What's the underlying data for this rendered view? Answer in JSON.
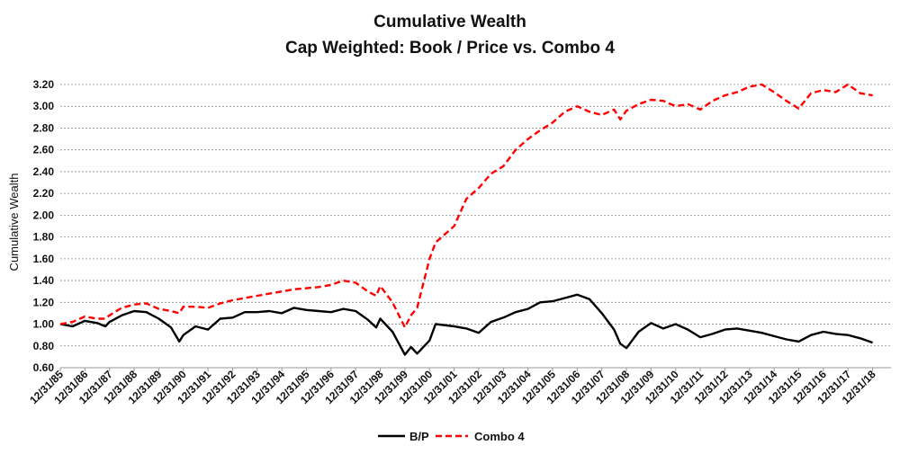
{
  "chart_data": {
    "type": "line",
    "title": "Cumulative Wealth",
    "subtitle": "Cap Weighted: Book / Price vs. Combo 4",
    "ylabel": "Cumulative Wealth",
    "xlabel": "",
    "ylim": [
      0.6,
      3.2
    ],
    "yticks": [
      "0.60",
      "0.80",
      "1.00",
      "1.20",
      "1.40",
      "1.60",
      "1.80",
      "2.00",
      "2.20",
      "2.40",
      "2.60",
      "2.80",
      "3.00",
      "3.20"
    ],
    "x_ticks": [
      "12/31/85",
      "12/31/86",
      "12/31/87",
      "12/31/88",
      "12/31/89",
      "12/31/90",
      "12/31/91",
      "12/31/92",
      "12/31/93",
      "12/31/94",
      "12/31/95",
      "12/31/96",
      "12/31/97",
      "12/31/98",
      "12/31/99",
      "12/31/00",
      "12/31/01",
      "12/31/02",
      "12/31/03",
      "12/31/04",
      "12/31/05",
      "12/31/06",
      "12/31/07",
      "12/31/08",
      "12/31/09",
      "12/31/10",
      "12/31/11",
      "12/31/12",
      "12/31/13",
      "12/31/14",
      "12/31/15",
      "12/31/16",
      "12/31/17",
      "12/31/18"
    ],
    "grid": "horizontal",
    "legend_position": "bottom",
    "series": [
      {
        "name": "B/P",
        "color": "#000000",
        "dash": "solid",
        "points": [
          [
            "12/31/85",
            1.0
          ],
          [
            "06/30/86",
            0.98
          ],
          [
            "12/31/86",
            1.03
          ],
          [
            "06/30/87",
            1.01
          ],
          [
            "10/31/87",
            0.98
          ],
          [
            "12/31/87",
            1.02
          ],
          [
            "06/30/88",
            1.08
          ],
          [
            "12/31/88",
            1.12
          ],
          [
            "06/30/89",
            1.11
          ],
          [
            "12/31/89",
            1.05
          ],
          [
            "06/30/90",
            0.97
          ],
          [
            "10/31/90",
            0.84
          ],
          [
            "12/31/90",
            0.9
          ],
          [
            "06/30/91",
            0.98
          ],
          [
            "12/31/91",
            0.95
          ],
          [
            "06/30/92",
            1.05
          ],
          [
            "12/31/92",
            1.06
          ],
          [
            "06/30/93",
            1.11
          ],
          [
            "12/31/93",
            1.11
          ],
          [
            "06/30/94",
            1.12
          ],
          [
            "12/31/94",
            1.1
          ],
          [
            "06/30/95",
            1.15
          ],
          [
            "12/31/95",
            1.13
          ],
          [
            "06/30/96",
            1.12
          ],
          [
            "12/31/96",
            1.11
          ],
          [
            "06/30/97",
            1.14
          ],
          [
            "12/31/97",
            1.12
          ],
          [
            "06/30/98",
            1.04
          ],
          [
            "10/31/98",
            0.97
          ],
          [
            "12/31/98",
            1.05
          ],
          [
            "06/30/99",
            0.93
          ],
          [
            "12/31/99",
            0.72
          ],
          [
            "03/31/00",
            0.79
          ],
          [
            "06/30/00",
            0.73
          ],
          [
            "12/31/00",
            0.85
          ],
          [
            "03/31/01",
            1.0
          ],
          [
            "12/31/01",
            0.98
          ],
          [
            "06/30/02",
            0.96
          ],
          [
            "12/31/02",
            0.92
          ],
          [
            "06/30/03",
            1.02
          ],
          [
            "12/31/03",
            1.06
          ],
          [
            "06/30/04",
            1.11
          ],
          [
            "12/31/04",
            1.14
          ],
          [
            "06/30/05",
            1.2
          ],
          [
            "12/31/05",
            1.21
          ],
          [
            "06/30/06",
            1.24
          ],
          [
            "12/31/06",
            1.27
          ],
          [
            "06/30/07",
            1.23
          ],
          [
            "12/31/07",
            1.1
          ],
          [
            "06/30/08",
            0.95
          ],
          [
            "09/30/08",
            0.82
          ],
          [
            "12/31/08",
            0.78
          ],
          [
            "06/30/09",
            0.93
          ],
          [
            "12/31/09",
            1.01
          ],
          [
            "06/30/10",
            0.96
          ],
          [
            "12/31/10",
            1.0
          ],
          [
            "06/30/11",
            0.95
          ],
          [
            "12/31/11",
            0.88
          ],
          [
            "06/30/12",
            0.91
          ],
          [
            "12/31/12",
            0.95
          ],
          [
            "06/30/13",
            0.96
          ],
          [
            "12/31/13",
            0.94
          ],
          [
            "06/30/14",
            0.92
          ],
          [
            "12/31/14",
            0.89
          ],
          [
            "06/30/15",
            0.86
          ],
          [
            "12/31/15",
            0.84
          ],
          [
            "06/30/16",
            0.9
          ],
          [
            "12/31/16",
            0.93
          ],
          [
            "06/30/17",
            0.91
          ],
          [
            "12/31/17",
            0.9
          ],
          [
            "06/30/18",
            0.87
          ],
          [
            "12/31/18",
            0.83
          ]
        ]
      },
      {
        "name": "Combo 4",
        "color": "#ff0000",
        "dash": "dashed",
        "points": [
          [
            "12/31/85",
            1.0
          ],
          [
            "06/30/86",
            1.02
          ],
          [
            "12/31/86",
            1.07
          ],
          [
            "06/30/87",
            1.05
          ],
          [
            "10/31/87",
            1.05
          ],
          [
            "12/31/87",
            1.08
          ],
          [
            "06/30/88",
            1.15
          ],
          [
            "12/31/88",
            1.18
          ],
          [
            "06/30/89",
            1.19
          ],
          [
            "12/31/89",
            1.14
          ],
          [
            "06/30/90",
            1.12
          ],
          [
            "10/31/90",
            1.1
          ],
          [
            "12/31/90",
            1.16
          ],
          [
            "06/30/91",
            1.16
          ],
          [
            "12/31/91",
            1.15
          ],
          [
            "06/30/92",
            1.19
          ],
          [
            "12/31/92",
            1.22
          ],
          [
            "06/30/93",
            1.24
          ],
          [
            "12/31/93",
            1.26
          ],
          [
            "06/30/94",
            1.28
          ],
          [
            "12/31/94",
            1.3
          ],
          [
            "06/30/95",
            1.32
          ],
          [
            "12/31/95",
            1.33
          ],
          [
            "06/30/96",
            1.34
          ],
          [
            "12/31/96",
            1.36
          ],
          [
            "06/30/97",
            1.4
          ],
          [
            "12/31/97",
            1.38
          ],
          [
            "06/30/98",
            1.3
          ],
          [
            "10/31/98",
            1.26
          ],
          [
            "12/31/98",
            1.35
          ],
          [
            "06/30/99",
            1.2
          ],
          [
            "12/31/99",
            0.97
          ],
          [
            "03/31/00",
            1.08
          ],
          [
            "06/30/00",
            1.15
          ],
          [
            "12/31/00",
            1.6
          ],
          [
            "03/31/01",
            1.75
          ],
          [
            "12/31/01",
            1.9
          ],
          [
            "06/30/02",
            2.15
          ],
          [
            "12/31/02",
            2.25
          ],
          [
            "06/30/03",
            2.38
          ],
          [
            "12/31/03",
            2.45
          ],
          [
            "06/30/04",
            2.6
          ],
          [
            "12/31/04",
            2.7
          ],
          [
            "06/30/05",
            2.78
          ],
          [
            "12/31/05",
            2.85
          ],
          [
            "06/30/06",
            2.95
          ],
          [
            "12/31/06",
            3.0
          ],
          [
            "06/30/07",
            2.95
          ],
          [
            "12/31/07",
            2.92
          ],
          [
            "06/30/08",
            2.97
          ],
          [
            "09/30/08",
            2.88
          ],
          [
            "12/31/08",
            2.96
          ],
          [
            "06/30/09",
            3.02
          ],
          [
            "12/31/09",
            3.06
          ],
          [
            "06/30/10",
            3.05
          ],
          [
            "12/31/10",
            3.0
          ],
          [
            "06/30/11",
            3.02
          ],
          [
            "12/31/11",
            2.97
          ],
          [
            "06/30/12",
            3.05
          ],
          [
            "12/31/12",
            3.1
          ],
          [
            "06/30/13",
            3.13
          ],
          [
            "12/31/13",
            3.18
          ],
          [
            "06/30/14",
            3.2
          ],
          [
            "12/31/14",
            3.13
          ],
          [
            "06/30/15",
            3.05
          ],
          [
            "12/31/15",
            2.98
          ],
          [
            "06/30/16",
            3.12
          ],
          [
            "12/31/16",
            3.15
          ],
          [
            "06/30/17",
            3.13
          ],
          [
            "12/31/17",
            3.2
          ],
          [
            "06/30/18",
            3.12
          ],
          [
            "12/31/18",
            3.1
          ]
        ]
      }
    ]
  }
}
